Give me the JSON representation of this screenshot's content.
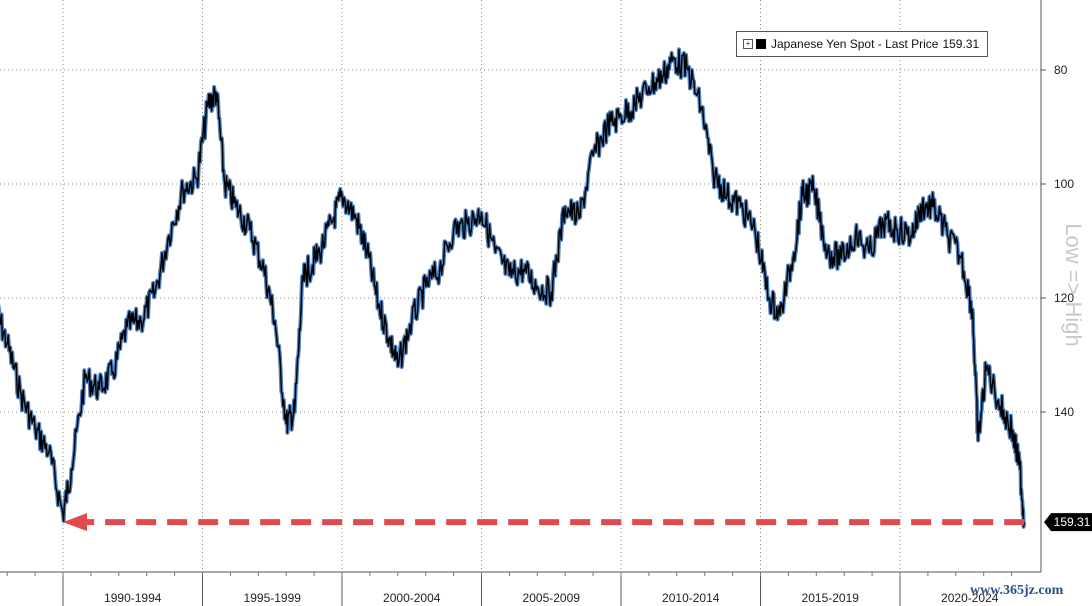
{
  "chart_data": {
    "type": "line",
    "series": [
      {
        "name": "Japanese Yen Spot - Last Price",
        "color": "#000000",
        "fill_color": "#3a73b8",
        "x": [
          1987.6,
          1988.0,
          1988.5,
          1989.0,
          1989.5,
          1990.0,
          1990.3,
          1990.8,
          1991.3,
          1991.8,
          1992.3,
          1992.8,
          1993.3,
          1993.8,
          1994.3,
          1994.8,
          1995.2,
          1995.5,
          1995.8,
          1996.2,
          1996.7,
          1997.2,
          1997.6,
          1998.0,
          1998.3,
          1998.6,
          1998.8,
          1999.2,
          1999.7,
          2000.0,
          2000.5,
          2000.9,
          2001.3,
          2001.7,
          2002.0,
          2002.5,
          2003.0,
          2003.5,
          2004.0,
          2004.5,
          2005.0,
          2005.5,
          2006.0,
          2006.5,
          2007.0,
          2007.5,
          2008.0,
          2008.5,
          2009.0,
          2009.5,
          2010.0,
          2010.5,
          2011.0,
          2011.5,
          2011.9,
          2012.4,
          2012.9,
          2013.3,
          2013.8,
          2014.3,
          2014.8,
          2015.3,
          2015.7,
          2016.2,
          2016.5,
          2016.9,
          2017.4,
          2017.9,
          2018.4,
          2018.9,
          2019.4,
          2019.9,
          2020.4,
          2020.8,
          2021.2,
          2021.7,
          2022.2,
          2022.6,
          2022.8,
          2023.1,
          2023.6,
          2024.0,
          2024.3,
          2024.45
        ],
        "y": [
          122,
          128,
          137,
          143,
          147,
          158,
          150,
          134,
          136,
          133,
          125,
          124,
          119,
          109,
          101,
          99,
          86,
          84,
          100,
          104,
          108,
          115,
          124,
          142,
          140,
          117,
          115,
          112,
          106,
          102,
          106,
          112,
          121,
          127,
          132,
          124,
          118,
          115,
          108,
          107,
          105,
          112,
          116,
          115,
          118,
          119,
          104,
          106,
          95,
          90,
          88,
          86,
          83,
          81,
          78,
          80,
          87,
          98,
          102,
          104,
          108,
          120,
          123,
          112,
          102,
          101,
          112,
          113,
          109,
          112,
          107,
          108,
          109,
          104,
          104,
          109,
          113,
          122,
          145,
          132,
          139,
          143,
          150,
          159.31
        ]
      }
    ],
    "y_reversed": true,
    "ylim": [
      75,
      162
    ],
    "xlim": [
      1987.4,
      2024.6
    ],
    "y_ticks": [
      80,
      100,
      120,
      140
    ],
    "x_periods": [
      "1990-1994",
      "1995-1999",
      "2000-2004",
      "2005-2009",
      "2010-2014",
      "2015-2019",
      "2020-2024"
    ],
    "last_price_label": "159.31",
    "annotation": {
      "type": "dashed-arrow",
      "value": 159.31,
      "from_x": 2024.45,
      "to_x": 1990.0,
      "color": "#e04a4a"
    },
    "grid": true,
    "legend_position": "top-right"
  },
  "legend": {
    "name": "Japanese Yen Spot - Last Price",
    "value": "159.31"
  },
  "axis_note": "Low => High",
  "watermark": "www.365jz.com"
}
